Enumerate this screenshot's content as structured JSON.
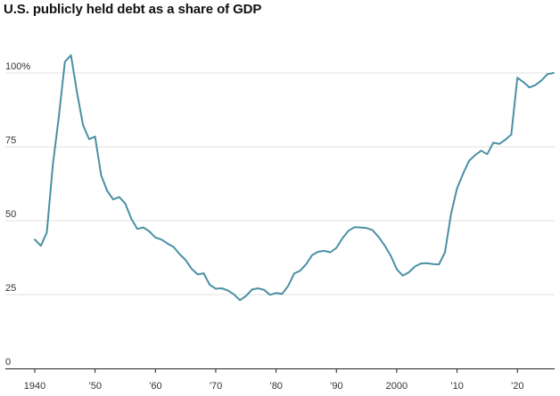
{
  "chart_data": {
    "type": "line",
    "title": "U.S. publicly held debt as a share of GDP",
    "xlabel": "",
    "ylabel": "",
    "xlim": [
      1938,
      2027
    ],
    "ylim": [
      0,
      110
    ],
    "x_ticks": [
      {
        "value": 1940,
        "label": "1940"
      },
      {
        "value": 1950,
        "label": "’50"
      },
      {
        "value": 1960,
        "label": "’60"
      },
      {
        "value": 1970,
        "label": "’70"
      },
      {
        "value": 1980,
        "label": "’80"
      },
      {
        "value": 1990,
        "label": "’90"
      },
      {
        "value": 2000,
        "label": "2000"
      },
      {
        "value": 2010,
        "label": "’10"
      },
      {
        "value": 2020,
        "label": "’20"
      }
    ],
    "y_ticks": [
      {
        "value": 0,
        "label": "0"
      },
      {
        "value": 25,
        "label": "25"
      },
      {
        "value": 50,
        "label": "50"
      },
      {
        "value": 75,
        "label": "75"
      },
      {
        "value": 100,
        "label": "100%"
      }
    ],
    "grid": true,
    "line_color": "#4a90a4",
    "grid_color": "#e2e2e2",
    "axis_color": "#222222",
    "series": [
      {
        "x": [
          1940,
          1941,
          1942,
          1943,
          1944,
          1945,
          1946,
          1947,
          1948,
          1949,
          1950,
          1951,
          1952,
          1953,
          1954,
          1955,
          1956,
          1957,
          1958,
          1959,
          1960,
          1961,
          1962,
          1963,
          1964,
          1965,
          1966,
          1967,
          1968,
          1969,
          1970,
          1971,
          1972,
          1973,
          1974,
          1975,
          1976,
          1977,
          1978,
          1979,
          1980,
          1981,
          1982,
          1983,
          1984,
          1985,
          1986,
          1987,
          1988,
          1989,
          1990,
          1991,
          1992,
          1993,
          1994,
          1995,
          1996,
          1997,
          1998,
          1999,
          2000,
          2001,
          2002,
          2003,
          2004,
          2005,
          2006,
          2007,
          2008,
          2009,
          2010,
          2011,
          2012,
          2013,
          2014,
          2015,
          2016,
          2017,
          2018,
          2019,
          2020,
          2021,
          2022,
          2023,
          2024,
          2025,
          2026
        ],
        "values": [
          43.6,
          41.5,
          46.0,
          69.0,
          85.5,
          103.8,
          106.0,
          93.3,
          82.4,
          77.6,
          78.5,
          65.4,
          60.1,
          57.2,
          58.0,
          55.8,
          50.7,
          47.2,
          47.7,
          46.4,
          44.3,
          43.6,
          42.3,
          41.1,
          38.7,
          36.7,
          33.7,
          31.8,
          32.2,
          28.3,
          27.0,
          27.1,
          26.4,
          25.1,
          23.1,
          24.5,
          26.7,
          27.1,
          26.6,
          24.9,
          25.5,
          25.2,
          27.9,
          32.1,
          33.1,
          35.3,
          38.4,
          39.5,
          39.8,
          39.3,
          40.8,
          44.0,
          46.6,
          47.8,
          47.7,
          47.5,
          46.8,
          44.5,
          41.6,
          38.2,
          33.6,
          31.4,
          32.5,
          34.5,
          35.5,
          35.6,
          35.3,
          35.2,
          39.3,
          52.3,
          60.9,
          65.9,
          70.3,
          72.2,
          73.7,
          72.5,
          76.4,
          76.0,
          77.4,
          79.2,
          98.4,
          96.9,
          95.1,
          95.9,
          97.5,
          99.6,
          100.0
        ]
      }
    ]
  }
}
